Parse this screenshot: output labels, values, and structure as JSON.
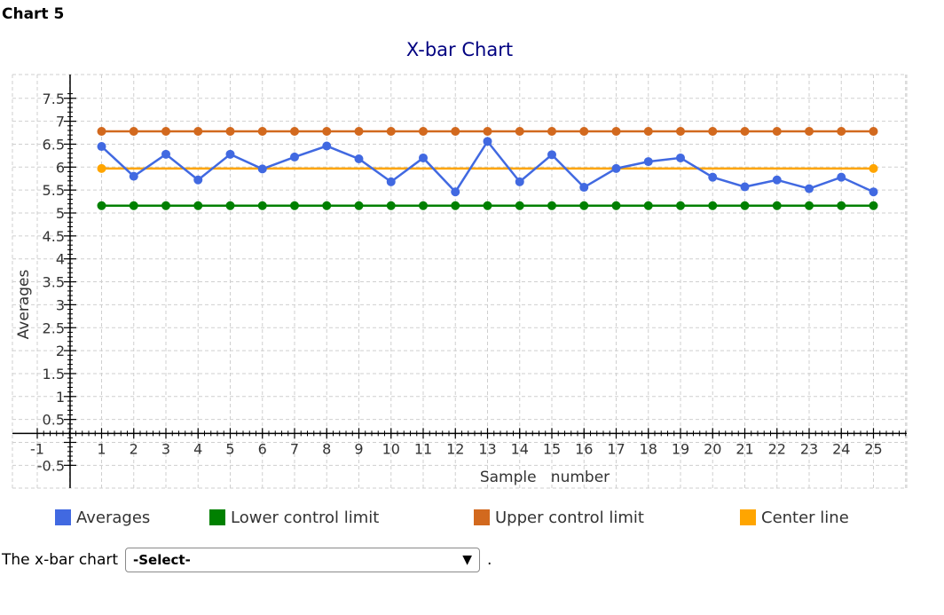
{
  "page": {
    "heading": "Chart 5",
    "question_prefix": "The x-bar chart",
    "select_value": "-Select-",
    "period": "."
  },
  "chart_data": {
    "type": "line",
    "title": "X-bar Chart",
    "xlabel": "Sample   number",
    "ylabel": "Averages",
    "x": [
      1,
      2,
      3,
      4,
      5,
      6,
      7,
      8,
      9,
      10,
      11,
      12,
      13,
      14,
      15,
      16,
      17,
      18,
      19,
      20,
      21,
      22,
      23,
      24,
      25
    ],
    "xlim": [
      -1,
      26
    ],
    "ylim": [
      -0.5,
      7.5
    ],
    "yticks": [
      -0.5,
      0,
      0.5,
      1,
      1.5,
      2,
      2.5,
      3,
      3.5,
      4,
      4.5,
      5,
      5.5,
      6,
      6.5,
      7,
      7.5
    ],
    "ytick_labels": [
      "-0.5",
      "",
      "0.5",
      "1",
      "1.5",
      "2",
      "2.5",
      "3",
      "3.5",
      "4",
      "4.5",
      "5",
      "5.5",
      "6",
      "6.5",
      "7",
      "7.5"
    ],
    "xtick_labels": [
      "-1",
      "1",
      "2",
      "3",
      "4",
      "5",
      "6",
      "7",
      "8",
      "9",
      "10",
      "11",
      "12",
      "13",
      "14",
      "15",
      "16",
      "17",
      "18",
      "19",
      "20",
      "21",
      "22",
      "23",
      "24",
      "25"
    ],
    "grid": true,
    "legend_position": "bottom",
    "series": [
      {
        "name": "Averages",
        "color": "#4169e1",
        "values": [
          6.45,
          5.8,
          6.28,
          5.72,
          6.28,
          5.96,
          6.22,
          6.46,
          6.18,
          5.68,
          6.2,
          5.46,
          6.56,
          5.68,
          6.27,
          5.56,
          5.97,
          6.12,
          6.2,
          5.78,
          5.57,
          5.72,
          5.53,
          5.78,
          5.46
        ]
      },
      {
        "name": "Lower   control   limit",
        "color": "#008000",
        "values": [
          5.16,
          5.16,
          5.16,
          5.16,
          5.16,
          5.16,
          5.16,
          5.16,
          5.16,
          5.16,
          5.16,
          5.16,
          5.16,
          5.16,
          5.16,
          5.16,
          5.16,
          5.16,
          5.16,
          5.16,
          5.16,
          5.16,
          5.16,
          5.16,
          5.16
        ]
      },
      {
        "name": "Upper   control   limit",
        "color": "#d2691e",
        "values": [
          6.78,
          6.78,
          6.78,
          6.78,
          6.78,
          6.78,
          6.78,
          6.78,
          6.78,
          6.78,
          6.78,
          6.78,
          6.78,
          6.78,
          6.78,
          6.78,
          6.78,
          6.78,
          6.78,
          6.78,
          6.78,
          6.78,
          6.78,
          6.78,
          6.78
        ]
      },
      {
        "name": "Center   line",
        "color": "#ffa500",
        "values": [
          5.97,
          5.97,
          5.97,
          5.97,
          5.97,
          5.97,
          5.97,
          5.97,
          5.97,
          5.97,
          5.97,
          5.97,
          5.97,
          5.97,
          5.97,
          5.97,
          5.97,
          5.97,
          5.97,
          5.97,
          5.97,
          5.97,
          5.97,
          5.97,
          5.97
        ]
      }
    ]
  }
}
